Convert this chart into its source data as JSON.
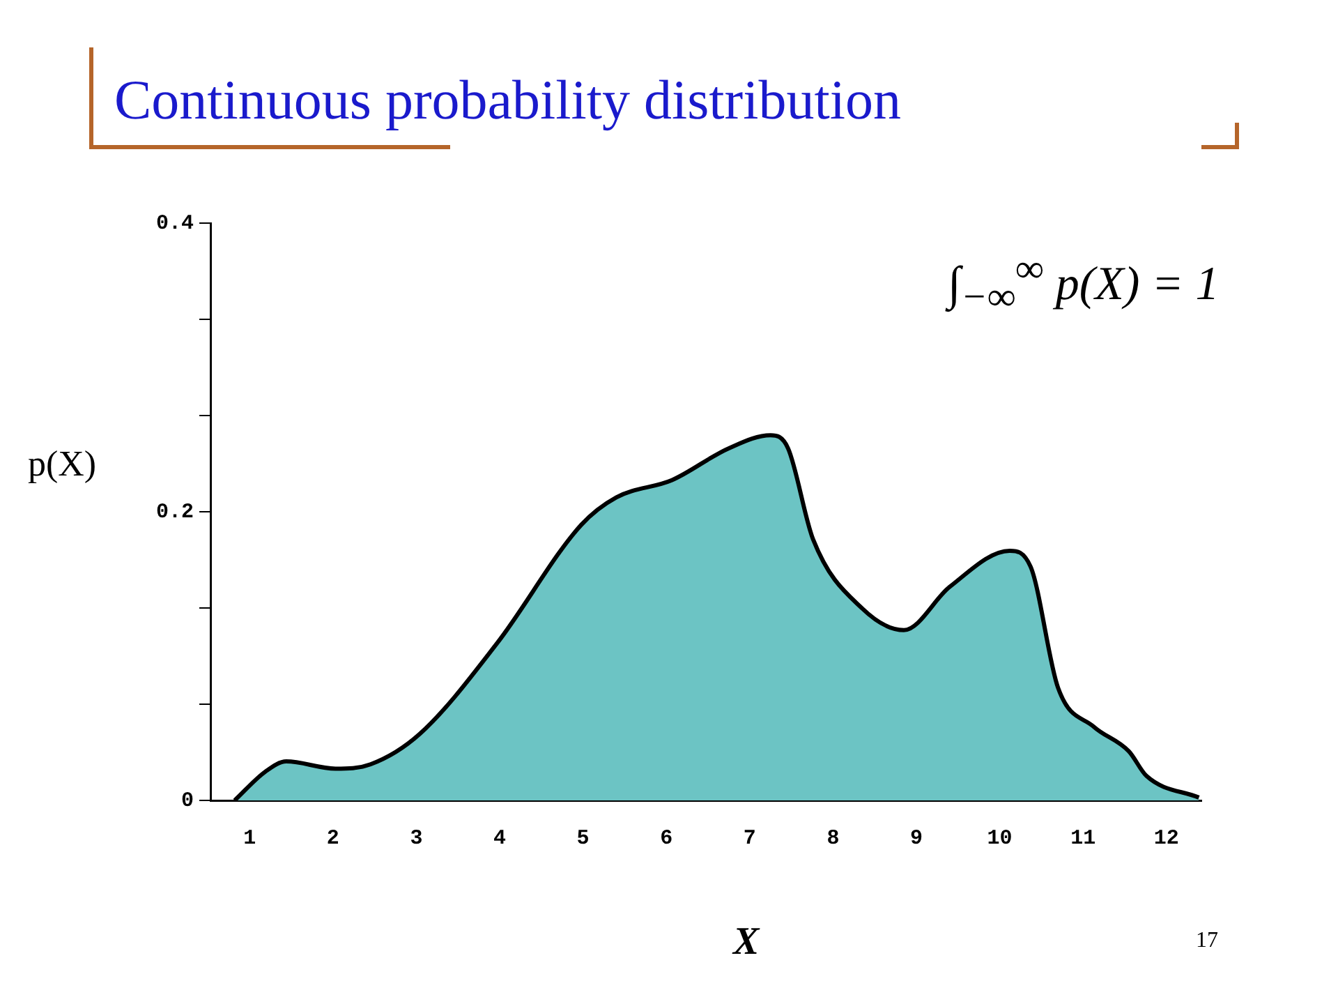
{
  "chart_data": {
    "type": "area",
    "title": "Continuous probability distribution",
    "xlabel": "X",
    "ylabel": "p(X)",
    "annotations": [
      "∫$_{−∞}$$^{∞}$ p(X) = 1",
      "17"
    ],
    "x": [
      0.82,
      1.19,
      1.44,
      2.03,
      2.45,
      3.04,
      3.97,
      4.98,
      5.4,
      6.07,
      6.75,
      7.25,
      7.46,
      7.76,
      8.35,
      8.85,
      9.4,
      10.12,
      10.37,
      10.7,
      11.13,
      11.55,
      11.76,
      12.39
    ],
    "series": [
      {
        "color": "#6cc4c4",
        "values": [
          0,
          0.02,
          0.027,
          0.022,
          0.025,
          0.046,
          0.109,
          0.191,
          0.21,
          0.222,
          0.244,
          0.253,
          0.244,
          0.181,
          0.133,
          0.118,
          0.148,
          0.173,
          0.162,
          0.078,
          0.051,
          0.034,
          0.017,
          0.002
        ]
      }
    ],
    "xlim": [
      0.53,
      12.42
    ],
    "xticks": [
      1,
      2,
      3,
      4,
      5,
      6,
      7,
      8,
      9,
      10,
      11,
      12
    ],
    "ylim": [
      0,
      0.4
    ],
    "yticks": [
      0,
      {
        "value": 0.0667,
        "label": null
      },
      {
        "value": 0.1333,
        "label": null
      },
      0.2,
      {
        "value": 0.2667,
        "label": null
      },
      {
        "value": 0.3333,
        "label": null
      },
      0.4
    ],
    "grid": false,
    "legend": false,
    "marker": "none"
  }
}
